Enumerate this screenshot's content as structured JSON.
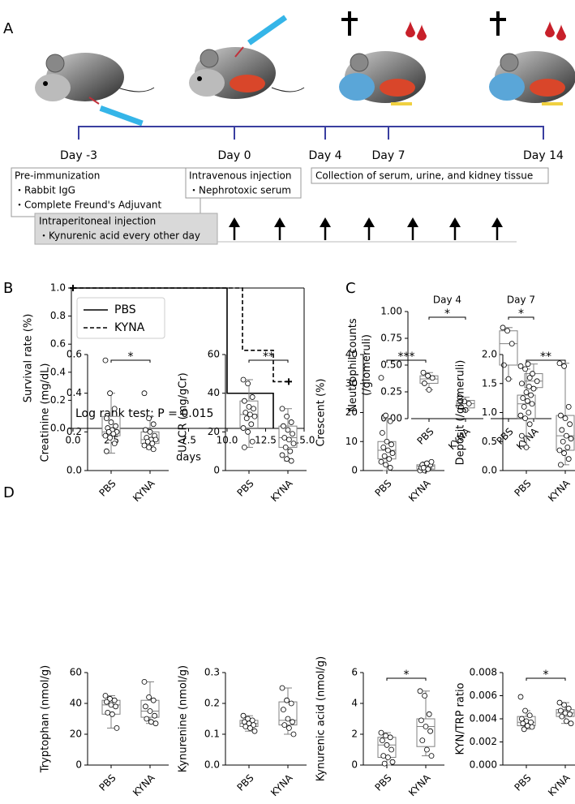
{
  "panel_labels": [
    "A",
    "B",
    "C",
    "D"
  ],
  "timeline": {
    "days": [
      "Day -3",
      "Day 0",
      "Day 4",
      "Day 7",
      "Day 14"
    ],
    "pre_immunization": [
      "Pre-immunization",
      "・Rabbit IgG",
      "・Complete Freund's Adjuvant"
    ],
    "intravenous": [
      "Intravenous injection",
      "・Nephrotoxic serum"
    ],
    "collection": "Collection of serum, urine, and kidney tissue",
    "intraperitoneal": [
      "Intraperitoneal injection",
      "・Kynurenic acid every other day"
    ]
  },
  "chart_data": [
    {
      "type": "line",
      "ylabel": "Survival rate (%)",
      "xlabel": "days",
      "xlim": [
        0,
        15
      ],
      "xticks": [
        {
          "value": 0,
          "label": "0.0"
        },
        2.5,
        {
          "value": 5,
          "label": "5.0"
        },
        7.5,
        {
          "value": 10,
          "label": "10.0"
        },
        12.5,
        {
          "value": 15,
          "label": "15.0"
        }
      ],
      "ylim": [
        0,
        1
      ],
      "yticks": [
        {
          "value": 0,
          "label": "0.0"
        },
        0.2,
        0.4,
        0.6,
        0.8,
        {
          "value": 1,
          "label": "1.0"
        }
      ],
      "series": [
        {
          "name": "PBS",
          "color": "#000000",
          "dash": false,
          "x": [
            0,
            10,
            10,
            13,
            13
          ],
          "values": [
            1,
            1,
            0.25,
            0.25,
            0
          ]
        },
        {
          "name": "KYNA",
          "color": "#000000",
          "dash": true,
          "x": [
            0,
            11,
            11,
            13,
            13,
            14
          ],
          "values": [
            1,
            1,
            0.556,
            0.556,
            0.333,
            0.333
          ]
        }
      ],
      "censor_marks": [
        {
          "x": 0,
          "y": 1
        },
        {
          "x": 14,
          "y": 0.333
        }
      ],
      "annotation": "Log rank test;  P = 0.015",
      "legend": "upper left"
    },
    {
      "type": "box",
      "ylabel": [
        "Neutrophil counts",
        "(/glomeruli)"
      ],
      "ylim": [
        0,
        1
      ],
      "yticks": [
        {
          "value": 0,
          "label": "0.00"
        },
        0.25,
        {
          "value": 0.5,
          "label": "0.50"
        },
        0.75,
        {
          "value": 1,
          "label": "1.00"
        }
      ],
      "panels": [
        {
          "title": "Day 4",
          "significance": "*",
          "groups": [
            {
              "name": "PBS",
              "min": 0.27,
              "q1": 0.33,
              "median": 0.37,
              "q3": 0.4,
              "max": 0.43,
              "points": [
                0.43,
                0.4,
                0.38,
                0.33,
                0.27
              ]
            },
            {
              "name": "KYNA",
              "min": 0.08,
              "q1": 0.1,
              "median": 0.14,
              "q3": 0.17,
              "max": 0.2,
              "points": [
                0.2,
                0.16,
                0.14,
                0.11,
                0.08
              ]
            }
          ]
        },
        {
          "title": "Day 7",
          "significance": "*",
          "groups": [
            {
              "name": "PBS",
              "min": 0.37,
              "q1": 0.5,
              "median": 0.7,
              "q3": 0.82,
              "max": 0.85,
              "points": [
                0.85,
                0.82,
                0.7,
                0.5,
                0.37
              ]
            },
            {
              "name": "KYNA",
              "min": 0.28,
              "q1": 0.29,
              "median": 0.35,
              "q3": 0.42,
              "max": 0.51,
              "points": [
                0.51,
                0.42,
                0.35,
                0.3,
                0.28
              ]
            }
          ]
        }
      ]
    },
    {
      "type": "box",
      "ylabel": "Creatinine (mg/dL)",
      "ylim": [
        0,
        0.6
      ],
      "yticks": [
        {
          "value": 0,
          "label": "0.0"
        },
        0.2,
        0.4,
        0.6
      ],
      "significance": "*",
      "groups": [
        {
          "name": "PBS",
          "min": 0.09,
          "q1": 0.18,
          "median": 0.2,
          "q3": 0.28,
          "max": 0.4,
          "points": [
            0.57,
            0.4,
            0.32,
            0.27,
            0.25,
            0.23,
            0.22,
            0.21,
            0.2,
            0.2,
            0.19,
            0.18,
            0.17,
            0.14,
            0.1
          ]
        },
        {
          "name": "KYNA",
          "min": 0.11,
          "q1": 0.14,
          "median": 0.16,
          "q3": 0.2,
          "max": 0.28,
          "points": [
            0.4,
            0.27,
            0.24,
            0.21,
            0.2,
            0.18,
            0.17,
            0.16,
            0.16,
            0.15,
            0.14,
            0.13,
            0.12,
            0.11
          ]
        }
      ]
    },
    {
      "type": "box",
      "ylabel": "UACR (mg/gCr)",
      "ylim": [
        0,
        60
      ],
      "yticks": [
        0,
        20,
        40,
        60
      ],
      "significance": "**",
      "groups": [
        {
          "name": "PBS",
          "min": 12,
          "q1": 22,
          "median": 29,
          "q3": 36,
          "max": 47,
          "points": [
            47,
            45,
            38,
            36,
            33,
            32,
            30,
            29,
            28,
            27,
            24,
            22,
            20,
            15,
            12
          ]
        },
        {
          "name": "KYNA",
          "min": 5,
          "q1": 12,
          "median": 17,
          "q3": 23,
          "max": 32,
          "points": [
            32,
            28,
            25,
            23,
            21,
            19,
            17,
            16,
            14,
            12,
            10,
            8,
            6,
            5
          ]
        }
      ]
    },
    {
      "type": "box",
      "ylabel": "Crescent (%)",
      "ylim": [
        0,
        40
      ],
      "yticks": [
        0,
        10,
        20,
        30,
        40
      ],
      "significance": "***",
      "groups": [
        {
          "name": "PBS",
          "min": 0,
          "q1": 4,
          "median": 7,
          "q3": 10,
          "max": 18,
          "points": [
            32,
            19,
            17,
            13,
            10,
            9,
            8,
            7,
            6,
            5,
            4,
            3,
            2,
            1
          ]
        },
        {
          "name": "KYNA",
          "min": 0,
          "q1": 0.5,
          "median": 1.5,
          "q3": 2,
          "max": 3,
          "points": [
            0,
            0,
            1,
            1,
            1.5,
            2,
            2,
            2.5,
            3,
            1,
            0.5
          ]
        }
      ]
    },
    {
      "type": "box",
      "ylabel": "Deposit (/glomeruli)",
      "ylim": [
        0,
        2
      ],
      "yticks": [
        {
          "value": 0,
          "label": "0.0"
        },
        0.5,
        {
          "value": 1,
          "label": "1.0"
        },
        1.5,
        {
          "value": 2,
          "label": "2.0"
        }
      ],
      "significance": "**",
      "groups": [
        {
          "name": "PBS",
          "min": 0.4,
          "q1": 0.9,
          "median": 1.15,
          "q3": 1.3,
          "max": 1.75,
          "points": [
            1.8,
            1.75,
            1.6,
            1.5,
            1.35,
            1.3,
            1.25,
            1.2,
            1.15,
            1.1,
            1,
            0.95,
            0.9,
            0.8,
            0.6,
            0.4
          ]
        },
        {
          "name": "KYNA",
          "min": 0.1,
          "q1": 0.35,
          "median": 0.6,
          "q3": 0.95,
          "max": 1.85,
          "points": [
            1.85,
            1.8,
            1.1,
            0.95,
            0.9,
            0.8,
            0.7,
            0.6,
            0.55,
            0.5,
            0.4,
            0.35,
            0.3,
            0.2,
            0.1
          ]
        }
      ]
    },
    {
      "type": "box",
      "ylabel": "Tryptophan (nmol/g)",
      "ylim": [
        0,
        60
      ],
      "yticks": [
        0,
        20,
        40,
        60
      ],
      "groups": [
        {
          "name": "PBS",
          "min": 24,
          "q1": 33,
          "median": 39,
          "q3": 42,
          "max": 45,
          "points": [
            45,
            43,
            42,
            41,
            39,
            38,
            34,
            33,
            24
          ]
        },
        {
          "name": "KYNA",
          "min": 27,
          "q1": 31,
          "median": 35,
          "q3": 42,
          "max": 54,
          "points": [
            54,
            44,
            42,
            38,
            35,
            32,
            30,
            28,
            27
          ]
        }
      ]
    },
    {
      "type": "box",
      "ylabel": "Kynurenine (nmol/g)",
      "ylim": [
        0,
        0.3
      ],
      "yticks": [
        {
          "value": 0,
          "label": "0.0"
        },
        0.1,
        0.2,
        0.3
      ],
      "groups": [
        {
          "name": "PBS",
          "min": 0.11,
          "q1": 0.125,
          "median": 0.135,
          "q3": 0.145,
          "max": 0.16,
          "points": [
            0.16,
            0.15,
            0.145,
            0.14,
            0.135,
            0.13,
            0.125,
            0.12,
            0.11
          ]
        },
        {
          "name": "KYNA",
          "min": 0.1,
          "q1": 0.13,
          "median": 0.145,
          "q3": 0.205,
          "max": 0.25,
          "points": [
            0.25,
            0.21,
            0.2,
            0.18,
            0.15,
            0.14,
            0.13,
            0.12,
            0.1
          ]
        }
      ]
    },
    {
      "type": "box",
      "ylabel": "Kynurenic acid (nmol/g)",
      "ylim": [
        0,
        6
      ],
      "yticks": [
        0,
        2,
        4,
        6
      ],
      "significance": "*",
      "groups": [
        {
          "name": "PBS",
          "min": 0,
          "q1": 0.5,
          "median": 1.3,
          "q3": 1.8,
          "max": 2.1,
          "points": [
            2.1,
            1.9,
            1.8,
            1.6,
            1.3,
            1,
            0.6,
            0.5,
            0.2,
            0.1
          ]
        },
        {
          "name": "KYNA",
          "min": 0.6,
          "q1": 1.2,
          "median": 2.5,
          "q3": 3,
          "max": 4.8,
          "points": [
            4.8,
            4.5,
            3.3,
            2.9,
            2.5,
            2.2,
            1.6,
            1,
            0.6
          ]
        }
      ]
    },
    {
      "type": "box",
      "ylabel": "KYN/TRP ratio",
      "ylim": [
        0,
        0.008
      ],
      "yticks": [
        {
          "value": 0,
          "label": "0.000"
        },
        0.002,
        0.004,
        0.006,
        0.008
      ],
      "significance": "*",
      "groups": [
        {
          "name": "PBS",
          "min": 0.0031,
          "q1": 0.0034,
          "median": 0.0037,
          "q3": 0.0042,
          "max": 0.0047,
          "points": [
            0.0059,
            0.0047,
            0.0043,
            0.004,
            0.0038,
            0.0037,
            0.0036,
            0.0034,
            0.0033,
            0.0031
          ]
        },
        {
          "name": "KYNA",
          "min": 0.0036,
          "q1": 0.0042,
          "median": 0.0045,
          "q3": 0.0048,
          "max": 0.0054,
          "points": [
            0.0054,
            0.0052,
            0.0049,
            0.0047,
            0.0045,
            0.0044,
            0.0042,
            0.0038,
            0.0036
          ]
        }
      ]
    }
  ]
}
